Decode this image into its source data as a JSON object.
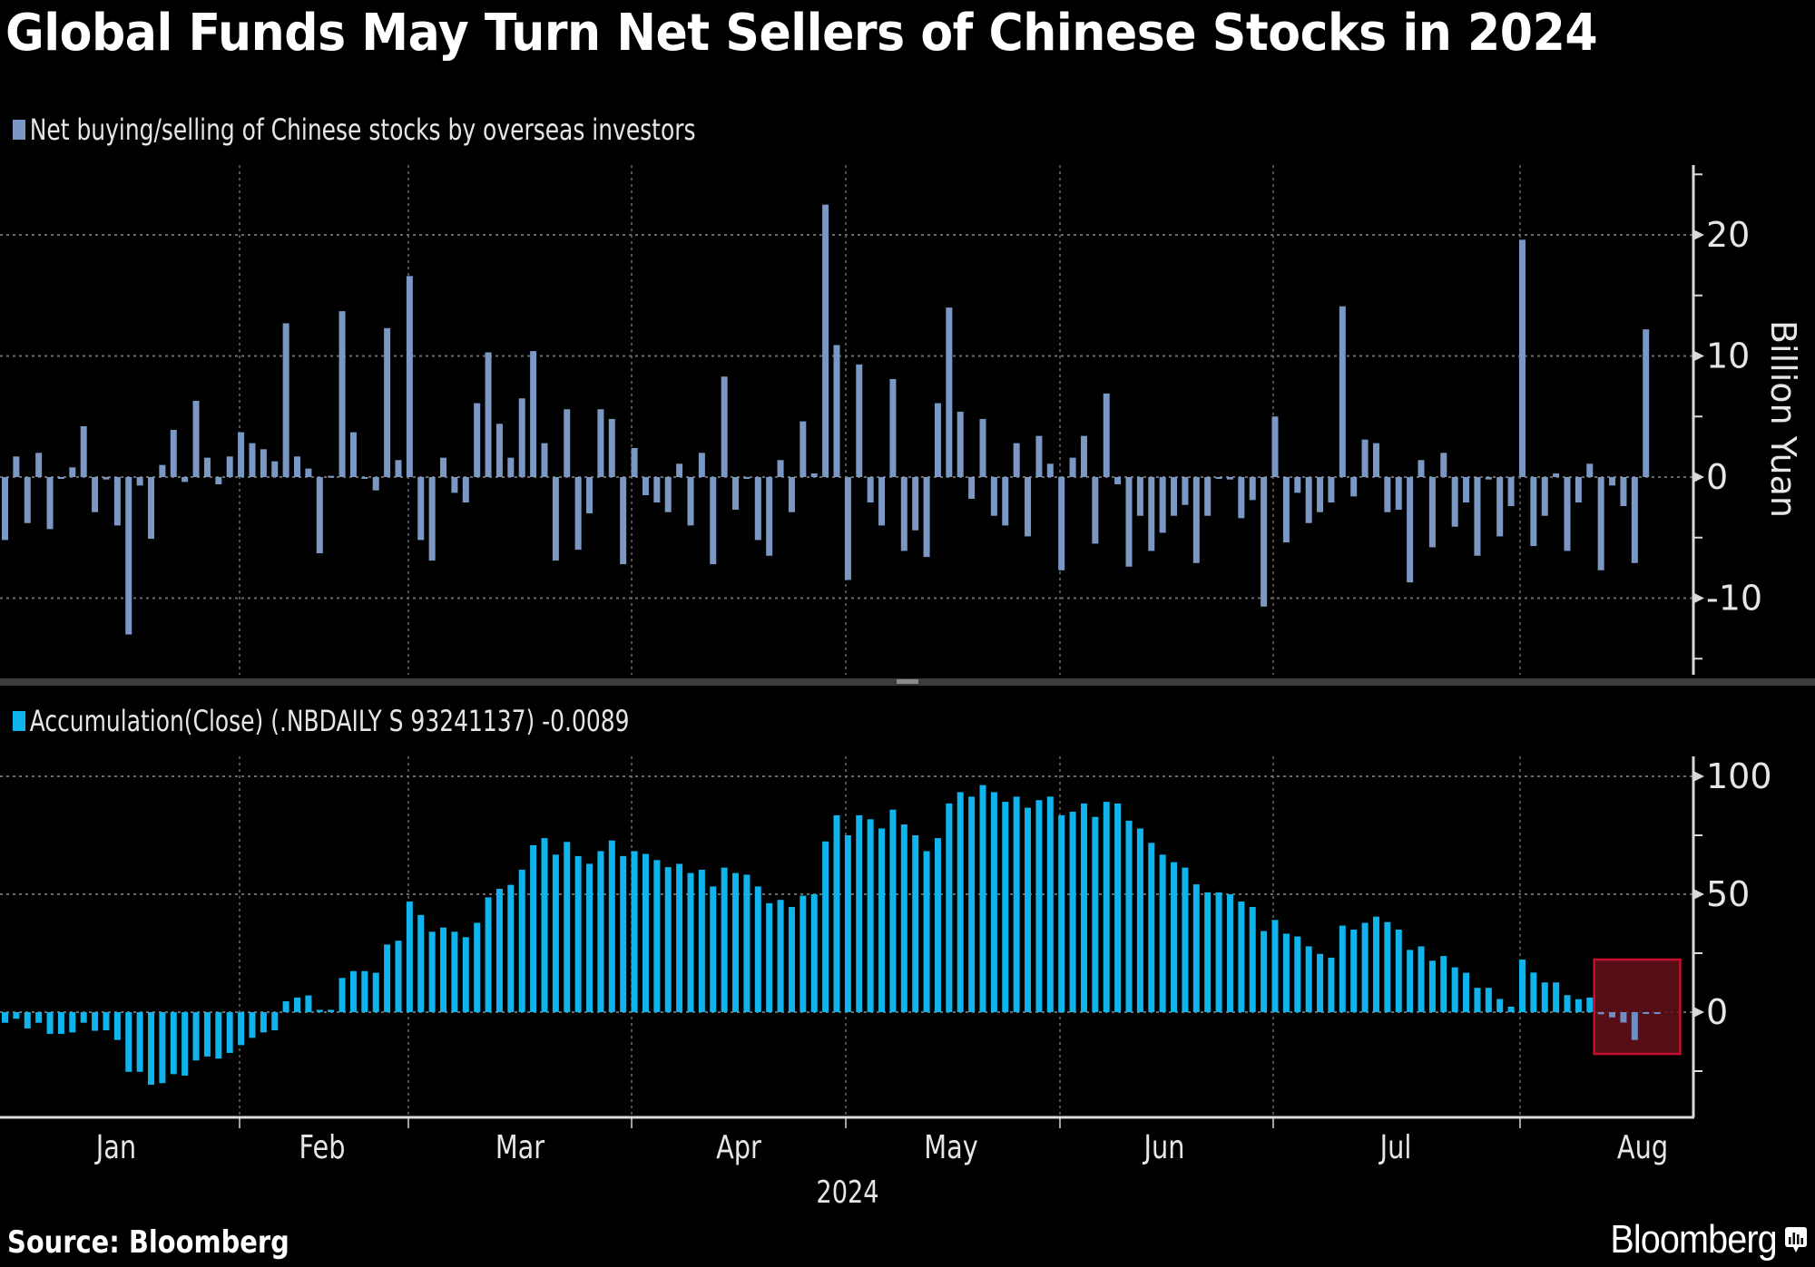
{
  "title": "Global Funds May Turn Net Sellers of Chinese Stocks in 2024",
  "source": "Source: Bloomberg",
  "logo_text": "Bloomberg",
  "colors": {
    "background": "#000000",
    "top_bars": "#7b98c4",
    "bottom_bars": "#10b4ec",
    "highlight_fill": "#64101a",
    "highlight_stroke": "#c8102e",
    "highlighted_bars": "#6f8fc4",
    "grid": "#6a6a6a",
    "axis": "#d9d9d9"
  },
  "chart_data": [
    {
      "type": "bar",
      "legend": "Net buying/selling of Chinese stocks by overseas investors",
      "ylabel": "Billion Yuan",
      "ylim": [
        -17,
        26
      ],
      "yticks": [
        20,
        10,
        0,
        -10
      ],
      "ytick_labels": [
        "20",
        "10",
        "0",
        "-10"
      ],
      "minor_yticks": [
        25,
        15,
        5,
        -5,
        -15
      ],
      "grid": true,
      "values": [
        -5.2,
        1.7,
        -3.8,
        2.0,
        -4.3,
        0.0,
        0.8,
        4.2,
        -2.9,
        -0.2,
        -4.0,
        -13.0,
        -0.7,
        -5.1,
        1.0,
        3.9,
        -0.4,
        6.3,
        1.6,
        -0.6,
        1.7,
        3.7,
        2.8,
        2.3,
        1.3,
        12.7,
        1.7,
        0.7,
        -6.3,
        0.1,
        13.7,
        3.7,
        0.0,
        -1.1,
        12.3,
        1.4,
        16.6,
        -5.2,
        -6.9,
        1.6,
        -1.3,
        -2.1,
        6.1,
        10.3,
        4.4,
        1.6,
        6.5,
        10.4,
        2.8,
        -6.9,
        5.6,
        -6.0,
        -3.0,
        5.6,
        4.8,
        -7.2,
        2.4,
        -1.5,
        -2.1,
        -2.9,
        1.1,
        -4.0,
        2.0,
        -7.2,
        8.3,
        -2.7,
        0.0,
        -5.2,
        -6.5,
        1.4,
        -2.9,
        4.6,
        0.3,
        22.5,
        10.9,
        -8.5,
        9.3,
        -2.1,
        -4.0,
        8.1,
        -6.1,
        -4.4,
        -6.6,
        6.1,
        14.0,
        5.4,
        -1.8,
        4.8,
        -3.2,
        -4.0,
        2.8,
        -4.9,
        3.4,
        1.1,
        -7.7,
        1.6,
        3.4,
        -5.5,
        6.9,
        -0.6,
        -7.4,
        -3.2,
        -6.1,
        -4.6,
        -3.2,
        -2.3,
        -7.1,
        -3.2,
        0.0,
        -0.2,
        -3.4,
        -1.9,
        -10.7,
        5.0,
        -5.4,
        -1.3,
        -3.8,
        -2.9,
        -2.1,
        14.1,
        -1.6,
        3.1,
        2.8,
        -2.9,
        -2.7,
        -8.7,
        1.4,
        -5.8,
        2.0,
        -4.1,
        -2.1,
        -6.5,
        -0.2,
        -4.9,
        -2.4,
        19.6,
        -5.7,
        -3.2,
        0.3,
        -6.1,
        -2.1,
        1.1,
        -7.7,
        -0.7,
        -2.4,
        -7.1,
        12.2
      ]
    },
    {
      "type": "bar",
      "legend": "Accumulation(Close) (.NBDAILY S 93241137) -0.0089",
      "ylim": [
        -35,
        108
      ],
      "yticks": [
        100,
        50,
        0
      ],
      "ytick_labels": [
        "100",
        "50",
        "0"
      ],
      "minor_yticks": [
        75,
        25,
        -25
      ],
      "grid": true,
      "values": [
        -4.5,
        -2.8,
        -6.9,
        -4.5,
        -9.2,
        -9.2,
        -8.6,
        -4.5,
        -7.9,
        -7.7,
        -11.8,
        -25.3,
        -25.3,
        -30.8,
        -30.1,
        -26.3,
        -26.9,
        -20.5,
        -18.8,
        -19.7,
        -17.3,
        -14.0,
        -10.9,
        -8.6,
        -7.7,
        4.6,
        6.2,
        7.1,
        1.0,
        1.0,
        14.5,
        17.4,
        17.4,
        16.7,
        28.7,
        30.3,
        46.9,
        41.2,
        34.1,
        35.9,
        34.1,
        31.8,
        37.9,
        48.7,
        52.3,
        54.0,
        60.4,
        70.8,
        73.8,
        66.8,
        72.2,
        66.2,
        62.9,
        68.3,
        72.8,
        66.2,
        68.3,
        67.1,
        64.5,
        61.5,
        62.9,
        59.0,
        60.4,
        53.3,
        61.3,
        59.0,
        58.3,
        53.3,
        46.2,
        47.6,
        44.6,
        49.4,
        50.0,
        72.4,
        83.5,
        75.0,
        83.5,
        81.8,
        77.9,
        85.9,
        79.6,
        75.0,
        68.3,
        73.8,
        88.5,
        93.3,
        91.4,
        96.3,
        93.3,
        89.2,
        91.4,
        86.7,
        89.9,
        91.4,
        83.5,
        85.0,
        88.5,
        82.8,
        89.2,
        88.5,
        81.2,
        77.9,
        71.8,
        66.8,
        63.6,
        61.3,
        54.2,
        50.8,
        50.8,
        50.0,
        46.9,
        44.6,
        34.4,
        39.1,
        33.3,
        32.1,
        27.9,
        24.7,
        23.1,
        36.7,
        35.0,
        37.9,
        40.5,
        38.2,
        35.0,
        26.4,
        27.9,
        21.8,
        23.8,
        19.0,
        16.7,
        10.3,
        10.3,
        5.6,
        2.3,
        22.3,
        16.8,
        12.6,
        12.6,
        7.2,
        5.5,
        6.2,
        -0.9,
        -2.2,
        -4.4,
        -11.8,
        -0.3,
        -0.3
      ],
      "highlight": {
        "from_index": 142,
        "to_index": 149,
        "y_range": [
          -17.7,
          22.3
        ]
      }
    }
  ],
  "x_axis": {
    "months": [
      "Jan",
      "Feb",
      "Mar",
      "Apr",
      "May",
      "Jun",
      "Jul",
      "Aug"
    ],
    "month_start_index": [
      0,
      21,
      36,
      56,
      75,
      94,
      113,
      135
    ],
    "year_label": "2024"
  }
}
